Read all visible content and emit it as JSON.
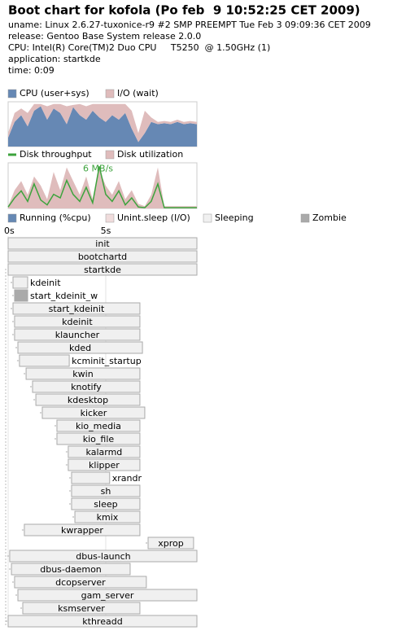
{
  "header": {
    "title": "Boot chart for kofola (Po feb  9 10:52:25 CET 2009)",
    "lines": [
      "uname: Linux 2.6.27-tuxonice-r9 #2 SMP PREEMPT Tue Feb 3 09:09:36 CET 2009",
      "release: Gentoo Base System release 2.0.0",
      "CPU: Intel(R) Core(TM)2 Duo CPU     T5250  @ 1.50GHz (1)",
      "application: startkde",
      "time: 0:09"
    ]
  },
  "chart_data": [
    {
      "type": "area",
      "stacked": true,
      "x": [
        0,
        0.33,
        0.67,
        1,
        1.33,
        1.67,
        2,
        2.33,
        2.67,
        3,
        3.33,
        3.67,
        4,
        4.33,
        4.67,
        5,
        5.33,
        5.67,
        6,
        6.33,
        6.67,
        7,
        7.33,
        7.67,
        8,
        8.33,
        8.67,
        9,
        9.33,
        9.67
      ],
      "xlim": [
        0,
        9.67
      ],
      "ylim": [
        0,
        100
      ],
      "series": [
        {
          "name": "CPU (user+sys)",
          "color": "#6688b4",
          "values": [
            20,
            55,
            70,
            45,
            80,
            90,
            60,
            85,
            75,
            50,
            88,
            70,
            60,
            80,
            65,
            55,
            70,
            60,
            75,
            40,
            10,
            30,
            55,
            50,
            52,
            50,
            55,
            50,
            52,
            50
          ]
        },
        {
          "name": "I/O (wait)",
          "color": "#dfbcbc",
          "values": [
            10,
            20,
            15,
            30,
            15,
            5,
            30,
            10,
            20,
            40,
            5,
            25,
            30,
            15,
            30,
            40,
            25,
            35,
            20,
            40,
            20,
            50,
            10,
            5,
            5,
            5,
            5,
            5,
            5,
            5
          ]
        }
      ]
    },
    {
      "type": "line",
      "x": [
        0,
        0.33,
        0.67,
        1,
        1.33,
        1.67,
        2,
        2.33,
        2.67,
        3,
        3.33,
        3.67,
        4,
        4.33,
        4.67,
        5,
        5.33,
        5.67,
        6,
        6.33,
        6.67,
        7,
        7.33,
        7.67,
        8,
        8.33,
        8.67,
        9,
        9.33,
        9.67
      ],
      "xlim": [
        0,
        9.67
      ],
      "ylim": [
        0,
        6.5
      ],
      "y2lim": [
        0,
        100
      ],
      "annotation": "6 MB/s",
      "series": [
        {
          "name": "Disk throughput",
          "color": "#3da33d",
          "values": [
            0.2,
            1.5,
            2.5,
            1,
            3.5,
            1.2,
            0.5,
            2,
            1.5,
            4,
            2,
            1,
            3,
            0.8,
            6,
            2,
            1,
            2.5,
            0.5,
            1.5,
            0.2,
            0.1,
            1,
            3.5,
            0.1,
            0.1,
            0.1,
            0.1,
            0.1,
            0.1
          ]
        },
        {
          "name": "Disk utilization",
          "color": "#dfbcbc",
          "axis": "y2",
          "values": [
            5,
            40,
            60,
            30,
            70,
            50,
            20,
            80,
            40,
            90,
            60,
            30,
            70,
            20,
            85,
            50,
            30,
            60,
            20,
            40,
            10,
            5,
            30,
            90,
            5,
            5,
            5,
            5,
            5,
            5
          ]
        }
      ]
    },
    {
      "type": "gantt",
      "xlim": [
        0,
        9.67
      ],
      "xticks": [
        {
          "value": 0,
          "label": "0s"
        },
        {
          "value": 5,
          "label": "5s"
        }
      ],
      "legend": [
        {
          "name": "Running (%cpu)",
          "color": "#6688b4"
        },
        {
          "name": "Unint.sleep (I/O)",
          "color": "#f0dcdc"
        },
        {
          "name": "Sleeping",
          "color": "#f0f0f0"
        },
        {
          "name": "Zombie",
          "color": "#aaaaaa"
        }
      ],
      "processes": [
        {
          "name": "init",
          "start": 0,
          "end": 9.67
        },
        {
          "name": "bootchartd",
          "start": 0,
          "end": 9.67
        },
        {
          "name": "startkde",
          "start": 0,
          "end": 9.67
        },
        {
          "name": "kdeinit",
          "start": 0.25,
          "end": 1.0
        },
        {
          "name": "start_kdeinit_w",
          "start": 0.33,
          "end": 1.0,
          "state": "Zombie"
        },
        {
          "name": "start_kdeinit",
          "start": 0.25,
          "end": 6.75
        },
        {
          "name": "kdeinit",
          "start": 0.33,
          "end": 6.75
        },
        {
          "name": "klauncher",
          "start": 0.33,
          "end": 6.75
        },
        {
          "name": "kded",
          "start": 0.5,
          "end": 6.88
        },
        {
          "name": "kcminit_startup",
          "start": 0.58,
          "end": 3.13
        },
        {
          "name": "kwin",
          "start": 0.92,
          "end": 6.75
        },
        {
          "name": "knotify",
          "start": 1.25,
          "end": 6.75
        },
        {
          "name": "kdesktop",
          "start": 1.42,
          "end": 6.75
        },
        {
          "name": "kicker",
          "start": 1.75,
          "end": 7.0
        },
        {
          "name": "kio_media",
          "start": 2.5,
          "end": 6.75
        },
        {
          "name": "kio_file",
          "start": 2.5,
          "end": 6.75
        },
        {
          "name": "kalarmd",
          "start": 3.08,
          "end": 6.75
        },
        {
          "name": "klipper",
          "start": 3.08,
          "end": 6.75
        },
        {
          "name": "xrandr",
          "start": 3.25,
          "end": 5.2
        },
        {
          "name": "sh",
          "start": 3.25,
          "end": 6.75
        },
        {
          "name": "sleep",
          "start": 3.25,
          "end": 6.75
        },
        {
          "name": "kmix",
          "start": 3.42,
          "end": 6.75
        },
        {
          "name": "kwrapper",
          "start": 0.83,
          "end": 6.75
        },
        {
          "name": "xprop",
          "start": 7.17,
          "end": 9.5
        },
        {
          "name": "dbus-launch",
          "start": 0.08,
          "end": 9.67
        },
        {
          "name": "dbus-daemon",
          "start": 0.17,
          "end": 6.25
        },
        {
          "name": "dcopserver",
          "start": 0.33,
          "end": 7.08
        },
        {
          "name": "gam_server",
          "start": 0.5,
          "end": 9.67
        },
        {
          "name": "ksmserver",
          "start": 0.75,
          "end": 6.75
        },
        {
          "name": "kthreadd",
          "start": 0,
          "end": 9.67
        }
      ]
    }
  ]
}
